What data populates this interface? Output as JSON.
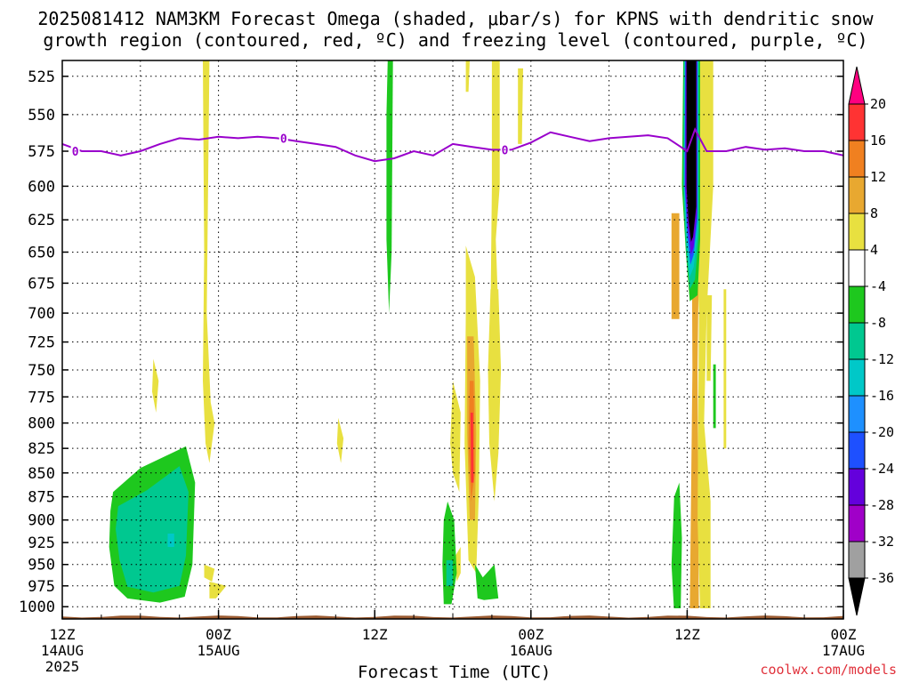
{
  "title": {
    "line1": "2025081412 NAM3KM Forecast Omega (shaded, μbar/s) for KPNS with dendritic snow",
    "line2": "growth region (contoured, red, ºC) and freezing level (contoured, purple, ºC)"
  },
  "credit": "coolwx.com/models",
  "chart_data": {
    "type": "heatmap",
    "xlabel": "Forecast Time (UTC)",
    "x_ticks": [
      {
        "hour": 0,
        "label": "12Z",
        "sub1": "14AUG",
        "sub2": "2025"
      },
      {
        "hour": 12,
        "label": "00Z",
        "sub1": "15AUG",
        "sub2": ""
      },
      {
        "hour": 24,
        "label": "12Z",
        "sub1": "",
        "sub2": ""
      },
      {
        "hour": 36,
        "label": "00Z",
        "sub1": "16AUG",
        "sub2": ""
      },
      {
        "hour": 48,
        "label": "12Z",
        "sub1": "",
        "sub2": ""
      },
      {
        "hour": 60,
        "label": "00Z",
        "sub1": "17AUG",
        "sub2": ""
      }
    ],
    "xlim": [
      0,
      60
    ],
    "ylabel": "",
    "y_axis": "pressure (hPa), inverted, log",
    "ylim": [
      1015,
      515
    ],
    "y_ticks": [
      525,
      550,
      575,
      600,
      625,
      650,
      675,
      700,
      725,
      750,
      775,
      800,
      825,
      850,
      875,
      900,
      925,
      950,
      975,
      1000
    ],
    "grid": true,
    "colorbar": {
      "labels": [
        20,
        16,
        12,
        8,
        4,
        -4,
        -8,
        -12,
        -16,
        -20,
        -24,
        -28,
        -32,
        -36
      ],
      "colors": [
        "#ff0080",
        "#ff3333",
        "#f08020",
        "#e8a830",
        "#e8e040",
        "#ffffff",
        "#1ec81e",
        "#00c890",
        "#00c8c8",
        "#1e90ff",
        "#1e50ff",
        "#6400dc",
        "#a000c8",
        "#a0a0a0",
        "#000000"
      ]
    },
    "omega_regions": [
      {
        "value": 8,
        "points": [
          [
            48.3,
            515
          ],
          [
            48.8,
            515
          ],
          [
            48.9,
            650
          ],
          [
            48.8,
            750
          ],
          [
            48.9,
            1012
          ],
          [
            48.2,
            1012
          ],
          [
            48.4,
            750
          ]
        ]
      },
      {
        "value": 8,
        "points": [
          [
            46.8,
            620
          ],
          [
            47.4,
            620
          ],
          [
            47.4,
            705
          ],
          [
            46.8,
            705
          ]
        ]
      },
      {
        "value": 4,
        "points": [
          [
            48.5,
            515
          ],
          [
            50.0,
            515
          ],
          [
            50.0,
            600
          ],
          [
            49.5,
            700
          ],
          [
            49.3,
            800
          ],
          [
            49.8,
            880
          ],
          [
            49.8,
            1005
          ],
          [
            49.0,
            1008
          ],
          [
            48.8,
            900
          ],
          [
            48.9,
            700
          ],
          [
            48.6,
            600
          ]
        ]
      },
      {
        "value": 4,
        "points": [
          [
            49.5,
            685
          ],
          [
            49.9,
            685
          ],
          [
            49.8,
            760
          ],
          [
            49.5,
            760
          ]
        ]
      },
      {
        "value": 4,
        "points": [
          [
            50.8,
            680
          ],
          [
            51.0,
            680
          ],
          [
            51.0,
            825
          ],
          [
            50.8,
            825
          ]
        ]
      },
      {
        "value": 4,
        "points": [
          [
            33.0,
            515
          ],
          [
            33.6,
            515
          ],
          [
            33.6,
            600
          ],
          [
            33.3,
            640
          ],
          [
            33.5,
            700
          ],
          [
            33.3,
            780
          ],
          [
            33.0,
            780
          ],
          [
            32.9,
            700
          ],
          [
            33.0,
            600
          ]
        ]
      },
      {
        "value": 4,
        "points": [
          [
            32.9,
            680
          ],
          [
            33.5,
            680
          ],
          [
            33.7,
            750
          ],
          [
            33.5,
            830
          ],
          [
            33.2,
            880
          ],
          [
            32.8,
            820
          ],
          [
            32.7,
            750
          ]
        ]
      },
      {
        "value": 4,
        "points": [
          [
            35.0,
            520
          ],
          [
            35.4,
            520
          ],
          [
            35.3,
            570
          ],
          [
            35.0,
            570
          ]
        ]
      },
      {
        "value": 4,
        "points": [
          [
            31.0,
            645
          ],
          [
            31.7,
            670
          ],
          [
            32.1,
            760
          ],
          [
            32.0,
            870
          ],
          [
            31.8,
            960
          ],
          [
            31.2,
            945
          ],
          [
            30.9,
            820
          ],
          [
            31.0,
            700
          ]
        ]
      },
      {
        "value": 8,
        "points": [
          [
            31.1,
            720
          ],
          [
            31.6,
            720
          ],
          [
            31.8,
            810
          ],
          [
            31.7,
            900
          ],
          [
            31.3,
            900
          ],
          [
            31.1,
            810
          ]
        ]
      },
      {
        "value": 12,
        "points": [
          [
            31.3,
            760
          ],
          [
            31.6,
            760
          ],
          [
            31.7,
            850
          ],
          [
            31.4,
            880
          ],
          [
            31.2,
            820
          ]
        ]
      },
      {
        "value": 16,
        "points": [
          [
            31.35,
            790
          ],
          [
            31.55,
            790
          ],
          [
            31.6,
            860
          ],
          [
            31.4,
            860
          ]
        ]
      },
      {
        "value": 4,
        "points": [
          [
            30.0,
            760
          ],
          [
            30.6,
            790
          ],
          [
            30.5,
            870
          ],
          [
            30.0,
            850
          ],
          [
            29.8,
            820
          ]
        ]
      },
      {
        "value": 4,
        "points": [
          [
            30.2,
            940
          ],
          [
            30.6,
            930
          ],
          [
            30.6,
            960
          ],
          [
            30.3,
            970
          ]
        ]
      },
      {
        "value": 4,
        "points": [
          [
            10.8,
            515
          ],
          [
            11.3,
            515
          ],
          [
            11.1,
            700
          ],
          [
            11.4,
            780
          ],
          [
            11.7,
            800
          ],
          [
            11.3,
            840
          ],
          [
            11.0,
            820
          ],
          [
            10.8,
            760
          ],
          [
            10.9,
            650
          ]
        ]
      },
      {
        "value": 4,
        "points": [
          [
            7.0,
            740
          ],
          [
            7.4,
            760
          ],
          [
            7.2,
            790
          ],
          [
            6.9,
            770
          ]
        ]
      },
      {
        "value": 4,
        "points": [
          [
            10.9,
            950
          ],
          [
            11.7,
            955
          ],
          [
            11.5,
            970
          ],
          [
            10.9,
            965
          ]
        ]
      },
      {
        "value": 4,
        "points": [
          [
            11.3,
            970
          ],
          [
            12.6,
            975
          ],
          [
            11.8,
            990
          ],
          [
            11.3,
            990
          ]
        ]
      },
      {
        "value": 4,
        "points": [
          [
            21.2,
            795
          ],
          [
            21.6,
            815
          ],
          [
            21.4,
            840
          ],
          [
            21.1,
            820
          ]
        ]
      },
      {
        "value": 4,
        "points": [
          [
            31.0,
            515
          ],
          [
            31.3,
            515
          ],
          [
            31.2,
            535
          ],
          [
            31.0,
            535
          ]
        ]
      },
      {
        "value": -8,
        "points": [
          [
            3.9,
            870
          ],
          [
            6.0,
            845
          ],
          [
            9.5,
            823
          ],
          [
            10.2,
            860
          ],
          [
            10.0,
            950
          ],
          [
            9.4,
            988
          ],
          [
            7.5,
            995
          ],
          [
            5.0,
            990
          ],
          [
            4.0,
            975
          ],
          [
            3.6,
            930
          ],
          [
            3.7,
            890
          ]
        ]
      },
      {
        "value": -12,
        "points": [
          [
            4.3,
            885
          ],
          [
            6.5,
            868
          ],
          [
            9.0,
            843
          ],
          [
            9.7,
            870
          ],
          [
            9.5,
            940
          ],
          [
            9.0,
            975
          ],
          [
            7.0,
            983
          ],
          [
            5.0,
            976
          ],
          [
            4.4,
            945
          ],
          [
            4.1,
            910
          ]
        ]
      },
      {
        "value": -16,
        "points": [
          [
            8.1,
            915
          ],
          [
            8.6,
            915
          ],
          [
            8.6,
            930
          ],
          [
            8.1,
            930
          ]
        ]
      },
      {
        "value": -8,
        "points": [
          [
            25.0,
            515
          ],
          [
            25.4,
            515
          ],
          [
            25.3,
            650
          ],
          [
            25.1,
            700
          ],
          [
            24.9,
            640
          ],
          [
            24.9,
            550
          ]
        ]
      },
      {
        "value": -8,
        "points": [
          [
            29.6,
            880
          ],
          [
            30.1,
            900
          ],
          [
            30.3,
            960
          ],
          [
            29.9,
            997
          ],
          [
            29.3,
            997
          ],
          [
            29.2,
            950
          ],
          [
            29.3,
            900
          ]
        ]
      },
      {
        "value": -12,
        "points": [
          [
            29.5,
            945
          ],
          [
            30.0,
            945
          ],
          [
            30.0,
            975
          ],
          [
            29.5,
            975
          ]
        ]
      },
      {
        "value": -8,
        "points": [
          [
            31.7,
            950
          ],
          [
            32.3,
            965
          ],
          [
            33.2,
            950
          ],
          [
            33.5,
            990
          ],
          [
            32.4,
            992
          ],
          [
            31.9,
            990
          ]
        ]
      },
      {
        "value": -8,
        "points": [
          [
            47.0,
            875
          ],
          [
            47.4,
            860
          ],
          [
            47.6,
            920
          ],
          [
            47.5,
            1008
          ],
          [
            47.0,
            1008
          ],
          [
            46.8,
            950
          ]
        ]
      },
      {
        "value": -8,
        "points": [
          [
            50.0,
            745
          ],
          [
            50.2,
            745
          ],
          [
            50.2,
            805
          ],
          [
            50.0,
            805
          ]
        ]
      },
      {
        "value": -8,
        "points": [
          [
            47.7,
            515
          ],
          [
            49.0,
            515
          ],
          [
            49.0,
            640
          ],
          [
            48.8,
            685
          ],
          [
            48.2,
            690
          ],
          [
            47.9,
            650
          ],
          [
            47.6,
            600
          ]
        ]
      },
      {
        "value": -12,
        "points": [
          [
            47.75,
            515
          ],
          [
            48.9,
            515
          ],
          [
            48.9,
            635
          ],
          [
            48.6,
            672
          ],
          [
            48.2,
            680
          ],
          [
            47.9,
            645
          ],
          [
            47.7,
            600
          ]
        ]
      },
      {
        "value": -16,
        "points": [
          [
            47.8,
            515
          ],
          [
            48.85,
            515
          ],
          [
            48.85,
            630
          ],
          [
            48.5,
            662
          ],
          [
            48.2,
            670
          ],
          [
            47.95,
            640
          ],
          [
            47.75,
            600
          ]
        ]
      },
      {
        "value": -24,
        "points": [
          [
            47.85,
            515
          ],
          [
            48.8,
            515
          ],
          [
            48.8,
            625
          ],
          [
            48.5,
            652
          ],
          [
            48.25,
            660
          ],
          [
            48.0,
            635
          ],
          [
            47.8,
            600
          ]
        ]
      },
      {
        "value": -28,
        "points": [
          [
            47.9,
            515
          ],
          [
            48.75,
            515
          ],
          [
            48.75,
            620
          ],
          [
            48.5,
            646
          ],
          [
            48.3,
            652
          ],
          [
            48.05,
            630
          ],
          [
            47.85,
            600
          ]
        ]
      },
      {
        "value": -36,
        "points": [
          [
            47.95,
            515
          ],
          [
            48.7,
            515
          ],
          [
            48.7,
            615
          ],
          [
            48.45,
            638
          ],
          [
            48.3,
            642
          ],
          [
            48.1,
            625
          ],
          [
            47.95,
            600
          ]
        ]
      }
    ],
    "freezing_level": {
      "label": "0",
      "x": [
        0,
        1.5,
        3,
        4.5,
        6,
        7.5,
        9,
        10.5,
        12,
        13.5,
        15,
        16.5,
        18,
        19.5,
        21,
        22.5,
        24,
        25.5,
        27,
        28.5,
        30,
        31.5,
        33,
        34.5,
        36,
        37.5,
        39,
        40.5,
        42,
        43.5,
        45,
        46.5,
        48,
        48.6,
        49.5,
        51,
        52.5,
        54,
        55.5,
        57,
        58.5,
        60
      ],
      "pressure": [
        570,
        575,
        575,
        578,
        575,
        570,
        566,
        567,
        565,
        566,
        565,
        566,
        568,
        570,
        572,
        578,
        582,
        580,
        575,
        578,
        570,
        572,
        574,
        574,
        569,
        562,
        565,
        568,
        566,
        565,
        564,
        566,
        575,
        560,
        575,
        575,
        572,
        574,
        573,
        575,
        575,
        578
      ],
      "label_points": [
        [
          1.0,
          575
        ],
        [
          17.0,
          566
        ],
        [
          34.0,
          574
        ]
      ]
    },
    "terrain_top_hpa": 1012
  }
}
